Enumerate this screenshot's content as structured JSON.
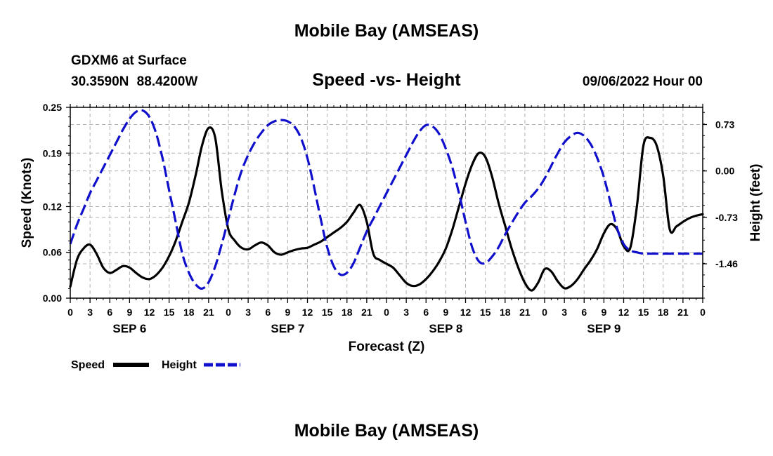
{
  "header": {
    "title": "Mobile Bay (AMSEAS)",
    "station": "GDXM6 at Surface",
    "coords": "30.3590N  88.4200W",
    "subtitle": "Speed -vs- Height",
    "datetime": "09/06/2022 Hour 00"
  },
  "footer": {
    "title": "Mobile Bay (AMSEAS)"
  },
  "colors": {
    "speed": "#000000",
    "height": "#1010cc",
    "grid": "#b0b0b0"
  },
  "chart_data": {
    "type": "line",
    "title": "Speed -vs- Height",
    "xlabel": "Forecast (Z)",
    "ylabel_left": "Speed (Knots)",
    "ylabel_right": "Height (feet)",
    "x_range": [
      0,
      96
    ],
    "x_ticks": [
      "0",
      "3",
      "6",
      "9",
      "12",
      "15",
      "18",
      "21",
      "0",
      "3",
      "6",
      "9",
      "12",
      "15",
      "18",
      "21",
      "0",
      "3",
      "6",
      "9",
      "12",
      "15",
      "18",
      "21",
      "0",
      "3",
      "6",
      "9",
      "12",
      "15",
      "18",
      "21",
      "0"
    ],
    "day_labels": [
      {
        "label": "SEP 6",
        "hour": 9
      },
      {
        "label": "SEP 7",
        "hour": 33
      },
      {
        "label": "SEP 8",
        "hour": 57
      },
      {
        "label": "SEP 9",
        "hour": 81
      }
    ],
    "y_left": {
      "range": [
        0,
        0.25
      ],
      "ticks": [
        "0.00",
        "0.06",
        "0.12",
        "0.19",
        "0.25"
      ]
    },
    "y_right": {
      "range": [
        -2.0,
        1.0
      ],
      "ticks": [
        "-1.46",
        "-0.73",
        "0.00",
        "0.73"
      ]
    },
    "legend": [
      {
        "label": "Speed",
        "style": "solid"
      },
      {
        "label": "Height",
        "style": "dashed"
      }
    ],
    "series": [
      {
        "name": "Speed",
        "axis": "left",
        "style": "solid",
        "x": [
          0,
          1,
          2,
          3,
          4,
          5,
          6,
          7,
          8,
          9,
          10,
          11,
          12,
          13,
          14,
          15,
          16,
          17,
          18,
          19,
          20,
          21,
          22,
          23,
          24,
          25,
          26,
          27,
          28,
          29,
          30,
          31,
          32,
          33,
          34,
          35,
          36,
          37,
          38,
          39,
          40,
          41,
          42,
          43,
          44,
          45,
          46,
          47,
          48,
          49,
          50,
          51,
          52,
          53,
          54,
          55,
          56,
          57,
          58,
          59,
          60,
          61,
          62,
          63,
          64,
          65,
          66,
          67,
          68,
          69,
          70,
          71,
          72,
          73,
          74,
          75,
          76,
          77,
          78,
          79,
          80,
          81,
          82,
          83,
          84,
          85,
          86,
          87,
          88,
          89,
          90,
          91,
          92,
          93,
          94,
          95,
          96
        ],
        "values": [
          0.015,
          0.05,
          0.065,
          0.07,
          0.058,
          0.04,
          0.033,
          0.037,
          0.042,
          0.04,
          0.033,
          0.027,
          0.025,
          0.03,
          0.04,
          0.055,
          0.075,
          0.1,
          0.125,
          0.16,
          0.2,
          0.223,
          0.21,
          0.14,
          0.09,
          0.075,
          0.066,
          0.064,
          0.069,
          0.073,
          0.069,
          0.06,
          0.057,
          0.06,
          0.063,
          0.065,
          0.066,
          0.07,
          0.074,
          0.08,
          0.086,
          0.092,
          0.1,
          0.112,
          0.122,
          0.1,
          0.058,
          0.05,
          0.045,
          0.04,
          0.03,
          0.02,
          0.016,
          0.018,
          0.025,
          0.035,
          0.048,
          0.065,
          0.09,
          0.12,
          0.15,
          0.175,
          0.19,
          0.185,
          0.16,
          0.125,
          0.095,
          0.065,
          0.04,
          0.02,
          0.01,
          0.02,
          0.038,
          0.035,
          0.022,
          0.013,
          0.016,
          0.025,
          0.038,
          0.05,
          0.065,
          0.085,
          0.097,
          0.09,
          0.068,
          0.066,
          0.12,
          0.2,
          0.21,
          0.2,
          0.16,
          0.09,
          0.094,
          0.1,
          0.105,
          0.108,
          0.11
        ]
      },
      {
        "name": "Height",
        "axis": "right",
        "style": "dashed",
        "x": [
          0,
          1,
          2,
          3,
          4,
          5,
          6,
          7,
          8,
          9,
          10,
          11,
          12,
          13,
          14,
          15,
          16,
          17,
          18,
          19,
          20,
          21,
          22,
          23,
          24,
          25,
          26,
          27,
          28,
          29,
          30,
          31,
          32,
          33,
          34,
          35,
          36,
          37,
          38,
          39,
          40,
          41,
          42,
          43,
          44,
          45,
          46,
          47,
          48,
          49,
          50,
          51,
          52,
          53,
          54,
          55,
          56,
          57,
          58,
          59,
          60,
          61,
          62,
          63,
          64,
          65,
          66,
          67,
          68,
          69,
          70,
          71,
          72,
          73,
          74,
          75,
          76,
          77,
          78,
          79,
          80,
          81,
          82,
          83,
          84,
          85,
          86,
          87,
          88,
          89,
          90,
          91,
          92,
          93,
          94,
          95,
          96
        ],
        "values": [
          -1.15,
          -0.85,
          -0.6,
          -0.35,
          -0.15,
          0.05,
          0.25,
          0.45,
          0.65,
          0.82,
          0.93,
          0.95,
          0.85,
          0.6,
          0.2,
          -0.3,
          -0.8,
          -1.3,
          -1.6,
          -1.78,
          -1.85,
          -1.75,
          -1.5,
          -1.15,
          -0.75,
          -0.35,
          0.0,
          0.25,
          0.45,
          0.6,
          0.72,
          0.78,
          0.8,
          0.78,
          0.7,
          0.52,
          0.2,
          -0.25,
          -0.75,
          -1.2,
          -1.5,
          -1.63,
          -1.6,
          -1.45,
          -1.2,
          -0.95,
          -0.75,
          -0.55,
          -0.35,
          -0.15,
          0.05,
          0.25,
          0.45,
          0.62,
          0.72,
          0.7,
          0.58,
          0.35,
          0.05,
          -0.35,
          -0.8,
          -1.2,
          -1.42,
          -1.45,
          -1.35,
          -1.2,
          -1.0,
          -0.82,
          -0.65,
          -0.5,
          -0.4,
          -0.28,
          -0.12,
          0.08,
          0.28,
          0.45,
          0.55,
          0.6,
          0.55,
          0.42,
          0.2,
          -0.1,
          -0.5,
          -0.9,
          -1.15,
          -1.25,
          -1.28,
          -1.3,
          -1.3,
          -1.3,
          -1.3,
          -1.3,
          -1.3,
          -1.3,
          -1.3,
          -1.3,
          -1.3
        ]
      }
    ]
  }
}
